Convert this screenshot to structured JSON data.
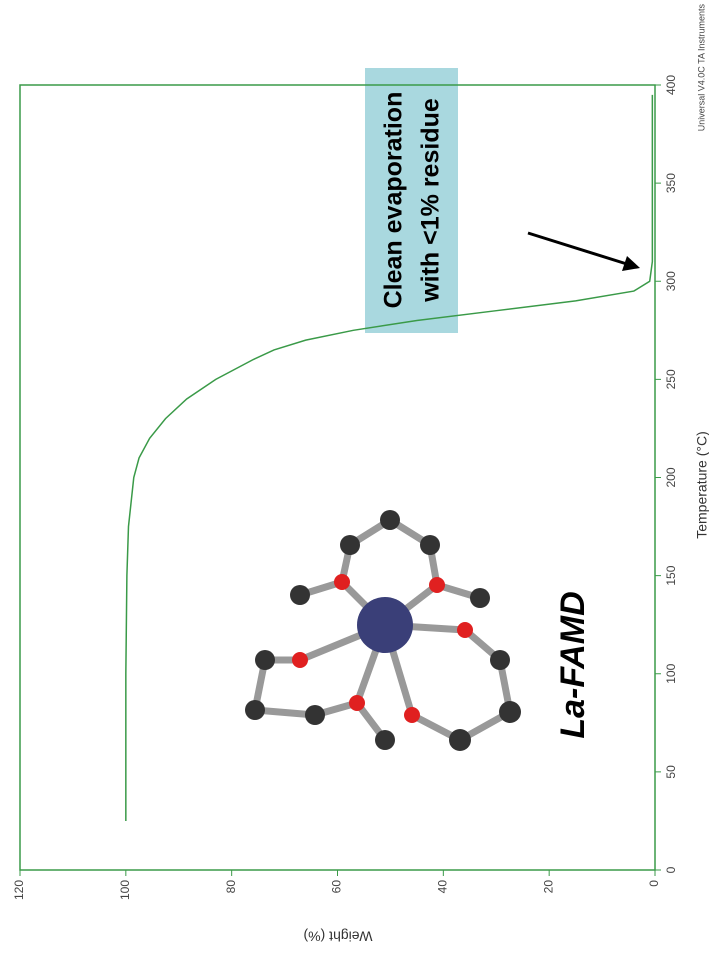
{
  "chart_data": {
    "type": "line",
    "x_label": "Temperature (°C)",
    "y_label": "Weight (%)",
    "x": [
      25,
      50,
      100,
      150,
      175,
      200,
      210,
      220,
      230,
      240,
      250,
      260,
      265,
      270,
      275,
      280,
      285,
      290,
      295,
      300,
      310,
      350,
      395
    ],
    "series": [
      {
        "color": "#3a9a48",
        "values": [
          100,
          100,
          100,
          99.8,
          99.5,
          98.5,
          97.5,
          95.5,
          92.5,
          88.5,
          83,
          76,
          72,
          66,
          57,
          45,
          30,
          15,
          4,
          1,
          0.5,
          0.5,
          0.5
        ]
      }
    ],
    "xlim": [
      0,
      400
    ],
    "xticks": [
      0,
      50,
      100,
      150,
      200,
      250,
      300,
      350,
      400
    ],
    "ylim": [
      0,
      120
    ],
    "yticks": [
      0,
      20,
      40,
      60,
      80,
      100,
      120
    ],
    "annotations": [
      "Clean evaporation",
      "with <1% residue",
      "La-FAMD"
    ],
    "footer": "Universal V4.0C TA Instruments"
  }
}
